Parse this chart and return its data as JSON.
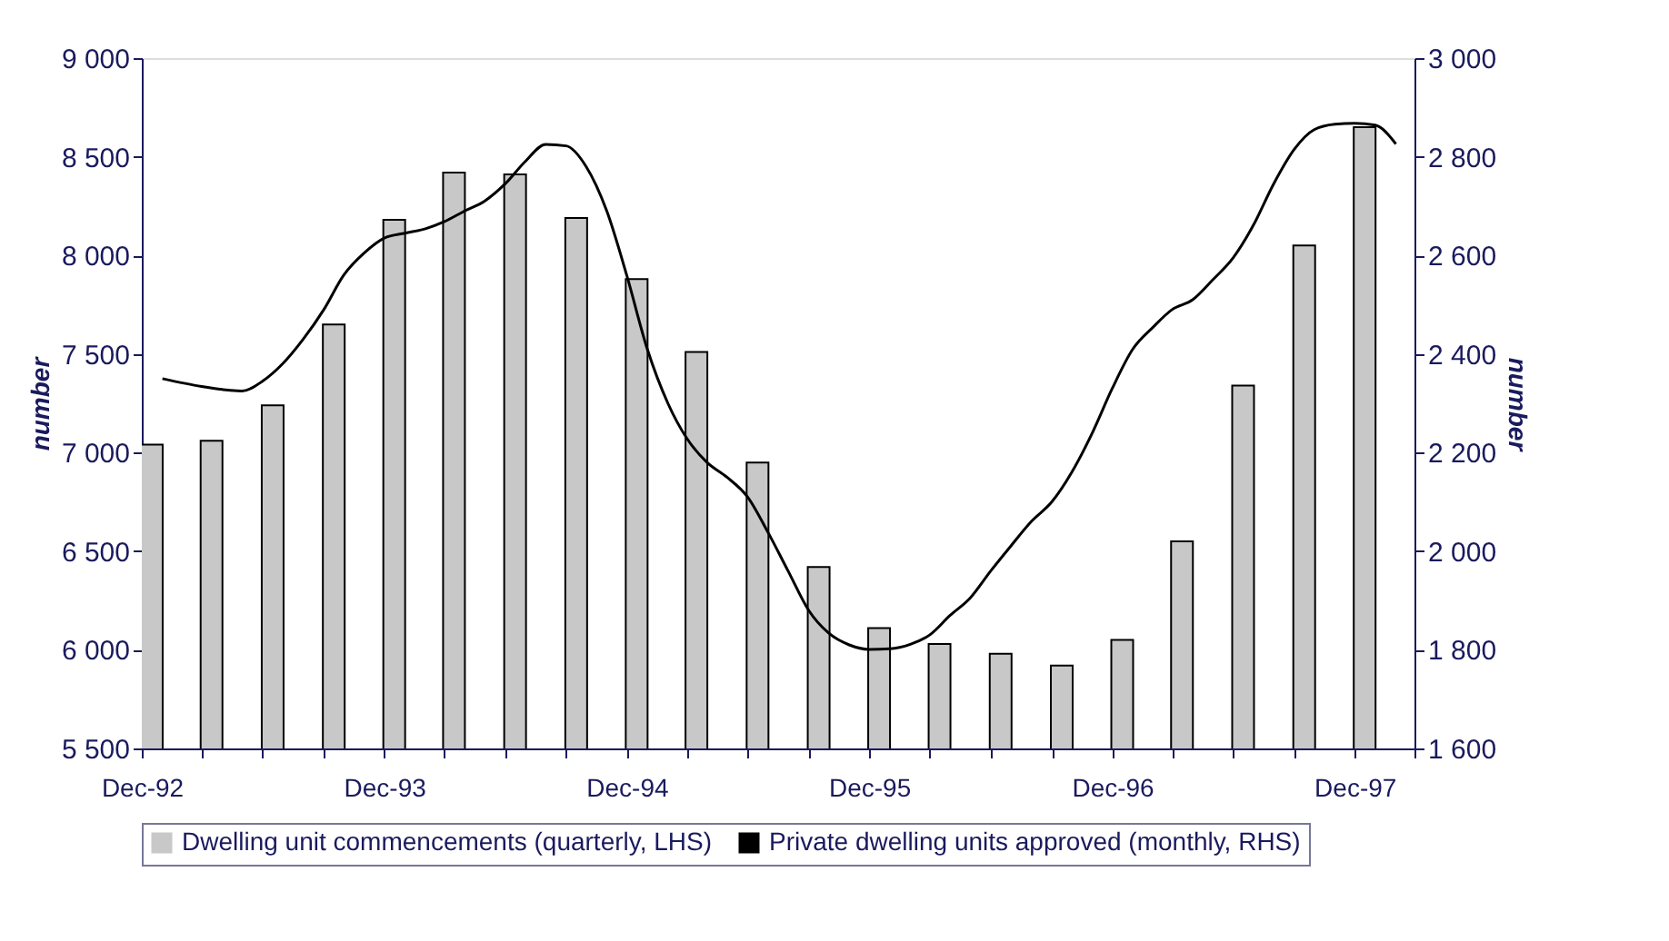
{
  "chart_data": {
    "type": "bar",
    "ylabel": "number",
    "y2label": "number",
    "x": [
      "1992-12-16",
      "1993-03-16",
      "1993-06-16",
      "1993-09-16",
      "1993-12-16",
      "1994-03-16",
      "1994-06-16",
      "1994-09-16",
      "1994-12-16",
      "1995-03-16",
      "1995-06-16",
      "1995-09-16",
      "1995-12-16",
      "1996-03-16",
      "1996-06-16",
      "1996-09-16",
      "1996-12-16",
      "1997-03-16",
      "1997-06-16",
      "1997-09-16",
      "1997-12-16"
    ],
    "xlim": [
      "1992-12",
      "1998-03"
    ],
    "xticks": [
      {
        "value": "1992-12",
        "label": "Dec-92"
      },
      {
        "value": "1993-03",
        "label": null
      },
      {
        "value": "1993-06",
        "label": null
      },
      {
        "value": "1993-09",
        "label": null
      },
      {
        "value": "1993-12",
        "label": "Dec-93"
      },
      {
        "value": "1994-03",
        "label": null
      },
      {
        "value": "1994-06",
        "label": null
      },
      {
        "value": "1994-09",
        "label": null
      },
      {
        "value": "1994-12",
        "label": "Dec-94"
      },
      {
        "value": "1995-03",
        "label": null
      },
      {
        "value": "1995-06",
        "label": null
      },
      {
        "value": "1995-09",
        "label": null
      },
      {
        "value": "1995-12",
        "label": "Dec-95"
      },
      {
        "value": "1996-03",
        "label": null
      },
      {
        "value": "1996-06",
        "label": null
      },
      {
        "value": "1996-09",
        "label": null
      },
      {
        "value": "1996-12",
        "label": "Dec-96"
      },
      {
        "value": "1997-03",
        "label": null
      },
      {
        "value": "1997-06",
        "label": null
      },
      {
        "value": "1997-09",
        "label": null
      },
      {
        "value": "1997-12",
        "label": "Dec-97"
      },
      {
        "value": "1998-03",
        "label": null
      }
    ],
    "ylim": [
      5500,
      9000
    ],
    "yticks": [
      {
        "value": 5500,
        "label": "5 500"
      },
      {
        "value": 6000,
        "label": "6 000"
      },
      {
        "value": 6500,
        "label": "6 500"
      },
      {
        "value": 7000,
        "label": "7 000"
      },
      {
        "value": 7500,
        "label": "7 500"
      },
      {
        "value": 8000,
        "label": "8 000"
      },
      {
        "value": 8500,
        "label": "8 500"
      },
      {
        "value": 9000,
        "label": "9 000"
      }
    ],
    "y2lim": [
      1600,
      3000
    ],
    "y2ticks": [
      {
        "value": 1600,
        "label": "1 600"
      },
      {
        "value": 1800,
        "label": "1 800"
      },
      {
        "value": 2000,
        "label": "2 000"
      },
      {
        "value": 2200,
        "label": "2 200"
      },
      {
        "value": 2400,
        "label": "2 400"
      },
      {
        "value": 2600,
        "label": "2 600"
      },
      {
        "value": 2800,
        "label": "2 800"
      },
      {
        "value": 3000,
        "label": "3 000"
      }
    ],
    "grid": false,
    "legend": "bottom",
    "series": [
      {
        "name": "Dwelling unit commencements (quarterly, LHS)",
        "color": "#c8c8c8",
        "values": [
          7040,
          7060,
          7240,
          7650,
          8180,
          8420,
          8410,
          8190,
          7880,
          7510,
          6950,
          6420,
          6110,
          6030,
          5980,
          5920,
          6050,
          6550,
          7340,
          8050,
          8650
        ]
      },
      {
        "name": "Private dwelling units approved (monthly, RHS)",
        "type": "line",
        "axis": "y2",
        "color": "#000000",
        "line_style": "solid",
        "marker": "none",
        "x": [
          "1993-01",
          "1993-03",
          "1993-04",
          "1993-05",
          "1993-06",
          "1993-07",
          "1993-08",
          "1993-09",
          "1993-10",
          "1993-11",
          "1993-12",
          "1994-01",
          "1994-02",
          "1994-03",
          "1994-04",
          "1994-05",
          "1994-06",
          "1994-07",
          "1994-08",
          "1994-09",
          "1994-10",
          "1994-11",
          "1994-12",
          "1995-01",
          "1995-02",
          "1995-03",
          "1995-04",
          "1995-05",
          "1995-06",
          "1995-07",
          "1995-08",
          "1995-09",
          "1995-10",
          "1995-11",
          "1995-12",
          "1996-01",
          "1996-02",
          "1996-03",
          "1996-04",
          "1996-05",
          "1996-06",
          "1996-07",
          "1996-08",
          "1996-09",
          "1996-10",
          "1996-11",
          "1996-12",
          "1997-01",
          "1997-02",
          "1997-03",
          "1997-04",
          "1997-05",
          "1997-06",
          "1997-07",
          "1997-08",
          "1997-09",
          "1997-10",
          "1997-11",
          "1997-12",
          "1998-01",
          "1998-02"
        ],
        "values": [
          2350,
          2334,
          2328,
          2325,
          2345,
          2380,
          2430,
          2490,
          2560,
          2605,
          2635,
          2645,
          2654,
          2668,
          2690,
          2710,
          2745,
          2790,
          2825,
          2822,
          2780,
          2690,
          2560,
          2410,
          2300,
          2230,
          2180,
          2150,
          2110,
          2040,
          1960,
          1880,
          1834,
          1810,
          1801,
          1802,
          1811,
          1830,
          1870,
          1905,
          1960,
          2010,
          2060,
          2100,
          2160,
          2240,
          2330,
          2410,
          2455,
          2490,
          2510,
          2550,
          2595,
          2660,
          2745,
          2815,
          2855,
          2866,
          2868,
          2864,
          2826
        ]
      }
    ]
  }
}
